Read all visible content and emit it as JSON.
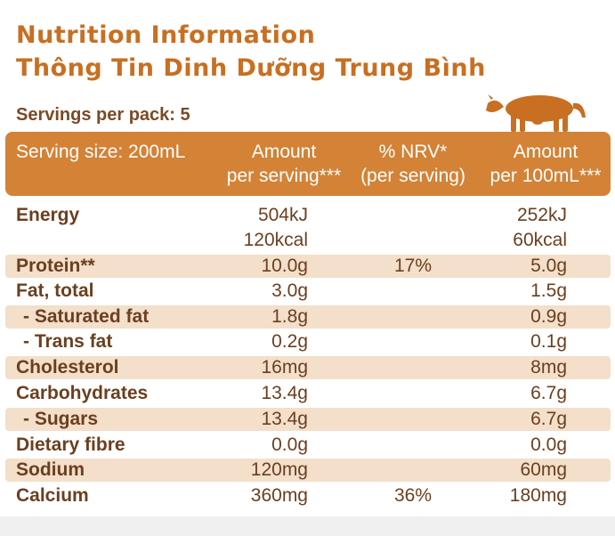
{
  "title_en": "Nutrition Information",
  "title_vn": "Thông Tin Dinh Dưỡng Trung Bình",
  "servings": "Servings per pack: 5",
  "header": {
    "serving_size": "Serving size: 200mL",
    "amount_line1": "Amount",
    "amount_line2": "per serving***",
    "nrv_line1": "% NRV*",
    "nrv_line2": "(per serving)",
    "per100_line1": "Amount",
    "per100_line2": "per 100mL***"
  },
  "colors": {
    "accent": "#d48236",
    "title": "#c86f22",
    "band": "#f3dfca",
    "text": "#6b3f1f"
  },
  "rows": [
    {
      "name": "Energy",
      "amount": "504kJ",
      "nrv": "",
      "per100": "252kJ"
    },
    {
      "name": "",
      "amount": "120kcal",
      "nrv": "",
      "per100": "60kcal"
    },
    {
      "name": "Protein**",
      "amount": "10.0g",
      "nrv": "17%",
      "per100": "5.0g"
    },
    {
      "name": "Fat, total",
      "amount": "3.0g",
      "nrv": "",
      "per100": "1.5g"
    },
    {
      "name": "- Saturated fat",
      "amount": "1.8g",
      "nrv": "",
      "per100": "0.9g"
    },
    {
      "name": "- Trans fat",
      "amount": "0.2g",
      "nrv": "",
      "per100": "0.1g"
    },
    {
      "name": "Cholesterol",
      "amount": "16mg",
      "nrv": "",
      "per100": "8mg"
    },
    {
      "name": "Carbohydrates",
      "amount": "13.4g",
      "nrv": "",
      "per100": "6.7g"
    },
    {
      "name": "- Sugars",
      "amount": "13.4g",
      "nrv": "",
      "per100": "6.7g"
    },
    {
      "name": "Dietary fibre",
      "amount": "0.0g",
      "nrv": "",
      "per100": "0.0g"
    },
    {
      "name": "Sodium",
      "amount": "120mg",
      "nrv": "",
      "per100": "60mg"
    },
    {
      "name": "Calcium",
      "amount": "360mg",
      "nrv": "36%",
      "per100": "180mg"
    }
  ]
}
